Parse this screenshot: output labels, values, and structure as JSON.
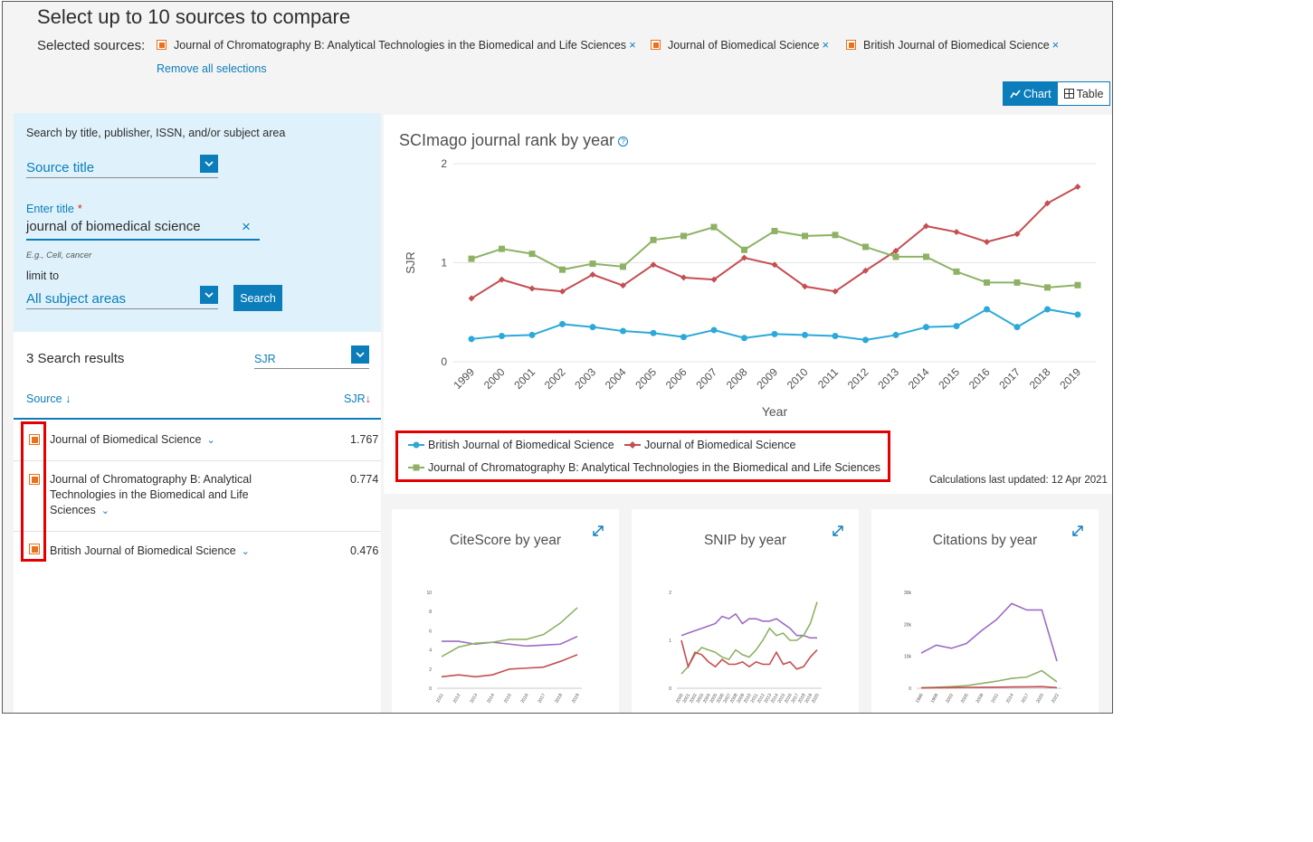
{
  "header": {
    "title": "Select up to 10 sources to compare",
    "selected_label": "Selected sources:",
    "selected_sources": [
      "Journal of Chromatography B: Analytical Technologies in the Biomedical and Life Sciences",
      "Journal of Biomedical Science",
      "British Journal of Biomedical Science"
    ],
    "remove_x": "×",
    "remove_all": "Remove all selections"
  },
  "view_toggle": {
    "chart_label": "Chart",
    "table_label": "Table",
    "active": "Chart"
  },
  "search": {
    "hint": "Search by title, publisher, ISSN, and/or subject area",
    "search_by": "Source title",
    "enter_title_label": "Enter title",
    "required_mark": "*",
    "title_value": "journal of biomedical science",
    "clear_icon": "×",
    "example": "E.g., Cell, cancer",
    "limit_label": "limit to",
    "limit_value": "All subject areas",
    "button": "Search"
  },
  "results": {
    "count_label": "3 Search results",
    "sort_by": "SJR",
    "col_source": "Source",
    "col_sjr": "SJR",
    "sort_arrow": "↓",
    "rows": [
      {
        "name": "Journal of Biomedical Science",
        "sjr": "1.767"
      },
      {
        "name": "Journal of Chromatography B: Analytical Technologies in the Biomedical and Life Sciences",
        "sjr": "0.774"
      },
      {
        "name": "British Journal of Biomedical Science",
        "sjr": "0.476"
      }
    ]
  },
  "main_chart": {
    "title": "SCImago journal rank by year",
    "help_icon": "?",
    "calc_note": "Calculations last updated: 12 Apr 2021"
  },
  "mini_cards": [
    {
      "title": "CiteScore by year"
    },
    {
      "title": "SNIP by year"
    },
    {
      "title": "Citations by year"
    }
  ],
  "chart_data": [
    {
      "type": "line",
      "title": "SCImago journal rank by year",
      "xlabel": "Year",
      "ylabel": "SJR",
      "ylim": [
        0,
        2
      ],
      "yticks": [
        "0",
        "1",
        "2"
      ],
      "grid": true,
      "legend": "bottom",
      "x": [
        "1999",
        "2000",
        "2001",
        "2002",
        "2003",
        "2004",
        "2005",
        "2006",
        "2007",
        "2008",
        "2009",
        "2010",
        "2011",
        "2012",
        "2013",
        "2014",
        "2015",
        "2016",
        "2017",
        "2018",
        "2019"
      ],
      "series": [
        {
          "name": "British Journal of Biomedical Science",
          "color": "#2ca9d9",
          "marker": "circle",
          "values": [
            0.23,
            0.26,
            0.27,
            0.38,
            0.35,
            0.31,
            0.29,
            0.25,
            0.32,
            0.24,
            0.28,
            0.27,
            0.26,
            0.22,
            0.27,
            0.35,
            0.36,
            0.53,
            0.35,
            0.53,
            0.476
          ]
        },
        {
          "name": "Journal of Biomedical Science",
          "color": "#c44e52",
          "marker": "diamond",
          "values": [
            0.64,
            0.83,
            0.74,
            0.71,
            0.88,
            0.77,
            0.98,
            0.85,
            0.83,
            1.05,
            0.98,
            0.76,
            0.71,
            0.92,
            1.12,
            1.37,
            1.31,
            1.21,
            1.29,
            1.6,
            1.767
          ]
        },
        {
          "name": "Journal of Chromatography B: Analytical Technologies in the Biomedical and Life Sciences",
          "color": "#8eb265",
          "marker": "square",
          "values": [
            1.04,
            1.14,
            1.09,
            0.93,
            0.99,
            0.96,
            1.23,
            1.27,
            1.36,
            1.13,
            1.32,
            1.27,
            1.28,
            1.16,
            1.06,
            1.06,
            0.91,
            0.8,
            0.8,
            0.75,
            0.774
          ]
        }
      ]
    },
    {
      "type": "line",
      "title": "CiteScore by year",
      "ylim": [
        0,
        10
      ],
      "yticks": [
        "0",
        "2",
        "4",
        "6",
        "8",
        "10"
      ],
      "x": [
        "2011",
        "2012",
        "2013",
        "2014",
        "2015",
        "2016",
        "2017",
        "2018",
        "2019"
      ],
      "series": [
        {
          "color": "#9c6cc2",
          "values": [
            4.9,
            4.9,
            4.6,
            4.8,
            4.6,
            4.4,
            4.5,
            4.6,
            5.4
          ]
        },
        {
          "color": "#8eb265",
          "values": [
            3.3,
            4.3,
            4.7,
            4.8,
            5.1,
            5.1,
            5.6,
            6.8,
            8.4
          ]
        },
        {
          "color": "#c44e52",
          "values": [
            1.2,
            1.4,
            1.2,
            1.4,
            2.0,
            2.1,
            2.2,
            2.8,
            3.5
          ]
        }
      ]
    },
    {
      "type": "line",
      "title": "SNIP by year",
      "ylim": [
        0,
        2
      ],
      "yticks": [
        "0",
        "1",
        "2"
      ],
      "x": [
        "2000",
        "2001",
        "2002",
        "2003",
        "2004",
        "2005",
        "2006",
        "2007",
        "2008",
        "2009",
        "2010",
        "2011",
        "2012",
        "2013",
        "2014",
        "2015",
        "2016",
        "2017",
        "2018",
        "2019",
        "2020"
      ],
      "series": [
        {
          "color": "#9c6cc2",
          "values": [
            1.1,
            1.15,
            1.2,
            1.25,
            1.3,
            1.35,
            1.5,
            1.45,
            1.55,
            1.35,
            1.45,
            1.45,
            1.4,
            1.4,
            1.45,
            1.35,
            1.25,
            1.1,
            1.1,
            1.05,
            1.05
          ]
        },
        {
          "color": "#8eb265",
          "values": [
            0.3,
            0.45,
            0.7,
            0.85,
            0.8,
            0.75,
            0.65,
            0.6,
            0.8,
            0.7,
            0.65,
            0.8,
            1.0,
            1.25,
            1.1,
            1.15,
            1.0,
            1.0,
            1.1,
            1.35,
            1.8
          ]
        },
        {
          "color": "#c44e52",
          "values": [
            1.0,
            0.45,
            0.75,
            0.7,
            0.55,
            0.45,
            0.6,
            0.5,
            0.5,
            0.55,
            0.45,
            0.55,
            0.5,
            0.5,
            0.75,
            0.5,
            0.55,
            0.4,
            0.45,
            0.65,
            0.8
          ]
        }
      ]
    },
    {
      "type": "line",
      "title": "Citations by year",
      "ylim": [
        0,
        30000
      ],
      "yticks": [
        "0",
        "10k",
        "20k",
        "30k"
      ],
      "x": [
        "1996",
        "1999",
        "2002",
        "2005",
        "2008",
        "2011",
        "2014",
        "2017",
        "2020",
        "2022"
      ],
      "series": [
        {
          "color": "#9c6cc2",
          "values": [
            11000,
            13500,
            12500,
            14000,
            18000,
            21500,
            26500,
            24500,
            24500,
            8500
          ]
        },
        {
          "color": "#8eb265",
          "values": [
            200,
            300,
            500,
            800,
            1500,
            2200,
            3100,
            3500,
            5500,
            2000
          ]
        },
        {
          "color": "#c44e52",
          "values": [
            100,
            150,
            200,
            250,
            300,
            350,
            400,
            450,
            500,
            200
          ]
        }
      ]
    }
  ]
}
